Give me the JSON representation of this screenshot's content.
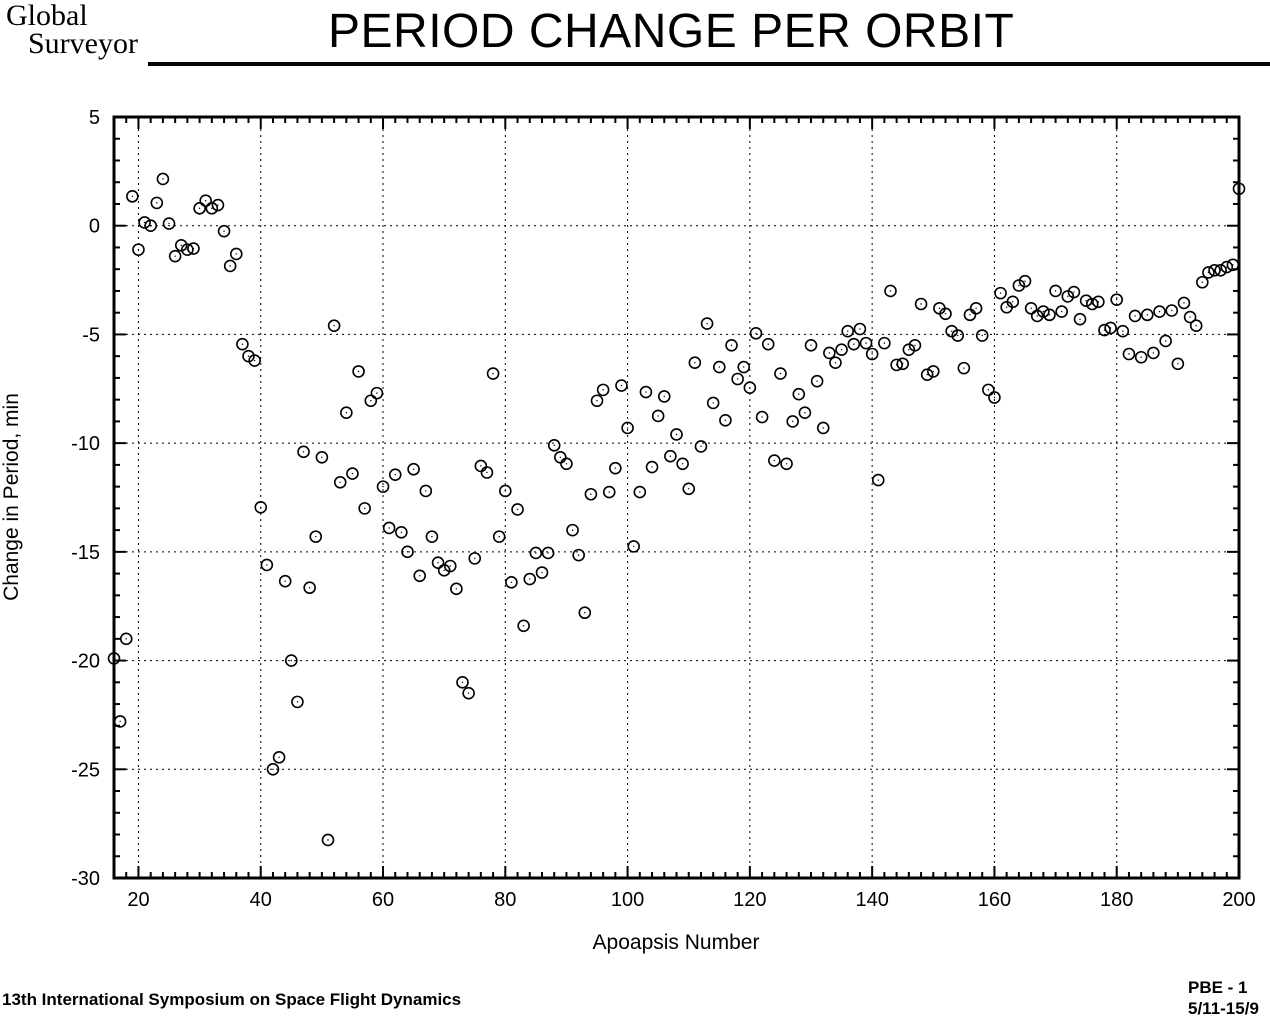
{
  "header": {
    "logo_line1": "Global",
    "logo_line2": "Surveyor",
    "title": "PERIOD CHANGE PER ORBIT"
  },
  "footer": {
    "left": "13th International Symposium on Space Flight Dynamics",
    "right_line1": "PBE  -  1",
    "right_line2": "5/11-15/9"
  },
  "chart_data": {
    "type": "scatter",
    "title": "PERIOD CHANGE PER ORBIT",
    "xlabel": "Apoapsis Number",
    "ylabel": "Change in Period,  min",
    "xlim": [
      16,
      200
    ],
    "ylim": [
      -30,
      5
    ],
    "xticks": [
      20,
      40,
      60,
      80,
      100,
      120,
      140,
      160,
      180,
      200
    ],
    "yticks": [
      5,
      0,
      -5,
      -10,
      -15,
      -20,
      -25,
      -30
    ],
    "grid": true,
    "marker": "open-circle",
    "color": "#000000",
    "x": [
      16,
      17,
      18,
      19,
      20,
      21,
      22,
      23,
      24,
      25,
      26,
      27,
      28,
      29,
      30,
      31,
      32,
      33,
      34,
      35,
      36,
      37,
      38,
      39,
      40,
      41,
      42,
      43,
      44,
      45,
      46,
      47,
      48,
      49,
      50,
      51,
      52,
      53,
      54,
      55,
      56,
      57,
      58,
      59,
      60,
      61,
      62,
      63,
      64,
      65,
      66,
      67,
      68,
      69,
      70,
      71,
      72,
      73,
      74,
      75,
      76,
      77,
      78,
      79,
      80,
      81,
      82,
      83,
      84,
      85,
      86,
      87,
      88,
      89,
      90,
      91,
      92,
      93,
      94,
      95,
      96,
      97,
      98,
      99,
      100,
      101,
      102,
      103,
      104,
      105,
      106,
      107,
      108,
      109,
      110,
      111,
      112,
      113,
      114,
      115,
      116,
      117,
      118,
      119,
      120,
      121,
      122,
      123,
      124,
      125,
      126,
      127,
      128,
      129,
      130,
      131,
      132,
      133,
      134,
      135,
      136,
      137,
      138,
      139,
      140,
      141,
      142,
      143,
      144,
      145,
      146,
      147,
      148,
      149,
      150,
      151,
      152,
      153,
      154,
      155,
      156,
      157,
      158,
      159,
      160,
      161,
      162,
      163,
      164,
      165,
      166,
      167,
      168,
      169,
      170,
      171,
      172,
      173,
      174,
      175,
      176,
      177,
      178,
      179,
      180,
      181,
      182,
      183,
      184,
      185,
      186,
      187,
      188,
      189,
      190,
      191,
      192,
      193,
      194,
      195,
      196,
      197,
      198,
      199,
      200
    ],
    "y": [
      -19.9,
      -22.8,
      -19.0,
      1.35,
      -1.1,
      0.15,
      0.0,
      1.05,
      2.15,
      0.1,
      -1.4,
      -0.9,
      -1.1,
      -1.05,
      0.8,
      1.15,
      0.8,
      0.95,
      -0.25,
      -1.85,
      -1.3,
      -5.45,
      -6.0,
      -6.2,
      -12.95,
      -15.6,
      -25.0,
      -24.45,
      -16.35,
      -20.0,
      -21.9,
      -10.4,
      -16.65,
      -14.3,
      -10.65,
      -28.25,
      -4.6,
      -11.8,
      -8.6,
      -11.4,
      -6.7,
      -13.0,
      -8.05,
      -7.7,
      -12.0,
      -13.9,
      -11.45,
      -14.1,
      -15.0,
      -11.2,
      -16.1,
      -12.2,
      -14.3,
      -15.5,
      -15.85,
      -15.65,
      -16.7,
      -21.0,
      -21.5,
      -15.3,
      -11.05,
      -11.35,
      -6.8,
      -14.3,
      -12.2,
      -16.4,
      -13.05,
      -18.4,
      -16.25,
      -15.05,
      -15.95,
      -15.05,
      -10.1,
      -10.65,
      -10.95,
      -14.0,
      -15.15,
      -17.8,
      -12.35,
      -8.05,
      -7.55,
      -12.25,
      -11.15,
      -7.35,
      -9.3,
      -14.75,
      -12.25,
      -7.65,
      -11.1,
      -8.75,
      -7.85,
      -10.6,
      -9.6,
      -10.95,
      -12.1,
      -6.3,
      -10.15,
      -4.5,
      -8.15,
      -6.5,
      -8.95,
      -5.5,
      -7.05,
      -6.5,
      -7.45,
      -4.95,
      -8.8,
      -5.45,
      -10.8,
      -6.8,
      -10.95,
      -9.0,
      -7.75,
      -8.6,
      -5.5,
      -7.15,
      -9.3,
      -5.85,
      -6.3,
      -5.7,
      -4.85,
      -5.45,
      -4.75,
      -5.4,
      -5.9,
      -11.7,
      -5.4,
      -3.0,
      -6.4,
      -6.35,
      -5.7,
      -5.5,
      -3.6,
      -6.85,
      -6.7,
      -3.8,
      -4.05,
      -4.85,
      -5.05,
      -6.55,
      -4.1,
      -3.8,
      -5.05,
      -7.55,
      -7.9,
      -3.1,
      -3.75,
      -3.5,
      -2.75,
      -2.55,
      -3.8,
      -4.15,
      -3.95,
      -4.1,
      -3.0,
      -3.95,
      -3.25,
      -3.05,
      -4.3,
      -3.45,
      -3.6,
      -3.5,
      -4.8,
      -4.7,
      -3.4,
      -4.85,
      -5.9,
      -4.15,
      -6.05,
      -4.1,
      -5.85,
      -3.95,
      -5.3,
      -3.9,
      -6.35,
      -3.55,
      -4.2,
      -4.6,
      -2.6,
      -2.15,
      -2.05,
      -2.05,
      -1.9,
      -1.8,
      1.7
    ]
  }
}
